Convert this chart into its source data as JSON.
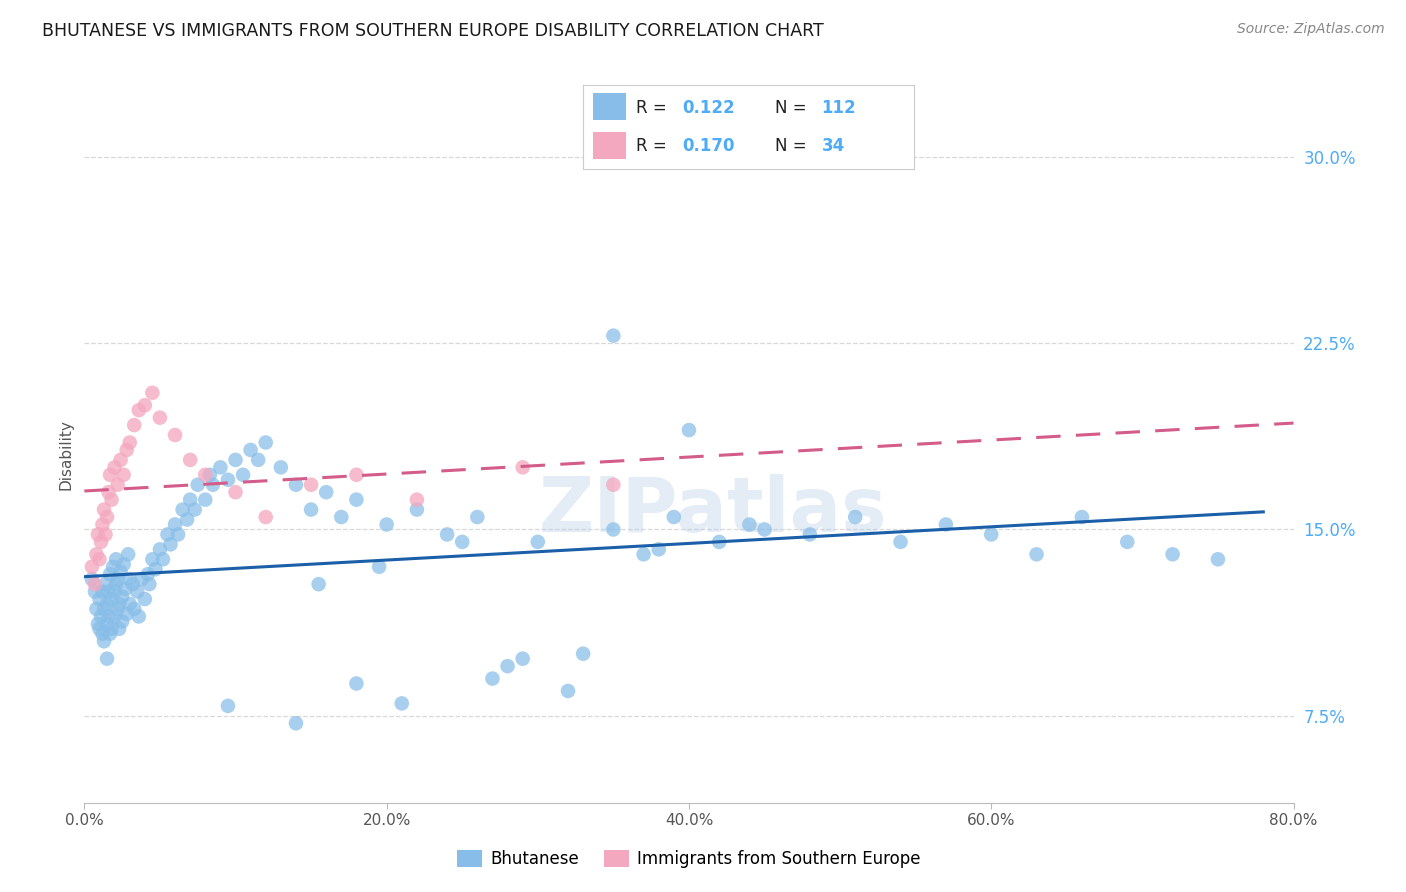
{
  "title": "BHUTANESE VS IMMIGRANTS FROM SOUTHERN EUROPE DISABILITY CORRELATION CHART",
  "source": "Source: ZipAtlas.com",
  "ylabel": "Disability",
  "yticks": [
    "7.5%",
    "15.0%",
    "22.5%",
    "30.0%"
  ],
  "ytick_vals": [
    0.075,
    0.15,
    0.225,
    0.3
  ],
  "xlim": [
    0.0,
    0.8
  ],
  "ylim": [
    0.04,
    0.32
  ],
  "r_bhutanese": 0.122,
  "n_bhutanese": 112,
  "r_southern_europe": 0.17,
  "n_southern_europe": 34,
  "color_bhutanese": "#87bde8",
  "color_southern_europe": "#f4a8bf",
  "line_color_bhutanese": "#1a5fa8",
  "line_color_southern_europe": "#d45c8a",
  "background_color": "#ffffff",
  "grid_color": "#d8d8d8",
  "title_color": "#1a1a1a",
  "axis_label_color": "#4dabf7",
  "watermark": "ZIPatlas",
  "bhutanese_x": [
    0.005,
    0.007,
    0.008,
    0.009,
    0.01,
    0.01,
    0.011,
    0.012,
    0.012,
    0.013,
    0.013,
    0.014,
    0.015,
    0.015,
    0.015,
    0.016,
    0.016,
    0.017,
    0.017,
    0.018,
    0.018,
    0.019,
    0.02,
    0.02,
    0.021,
    0.021,
    0.022,
    0.022,
    0.023,
    0.023,
    0.024,
    0.025,
    0.025,
    0.026,
    0.027,
    0.028,
    0.029,
    0.03,
    0.03,
    0.032,
    0.033,
    0.035,
    0.036,
    0.038,
    0.04,
    0.042,
    0.043,
    0.045,
    0.047,
    0.05,
    0.052,
    0.055,
    0.057,
    0.06,
    0.062,
    0.065,
    0.068,
    0.07,
    0.073,
    0.075,
    0.08,
    0.083,
    0.085,
    0.09,
    0.095,
    0.1,
    0.105,
    0.11,
    0.115,
    0.12,
    0.13,
    0.14,
    0.15,
    0.16,
    0.17,
    0.18,
    0.2,
    0.22,
    0.24,
    0.26,
    0.28,
    0.3,
    0.32,
    0.35,
    0.37,
    0.39,
    0.42,
    0.45,
    0.48,
    0.51,
    0.54,
    0.57,
    0.6,
    0.63,
    0.66,
    0.69,
    0.72,
    0.75,
    0.35,
    0.4,
    0.29,
    0.18,
    0.095,
    0.44,
    0.38,
    0.25,
    0.195,
    0.155,
    0.33,
    0.27,
    0.21,
    0.14
  ],
  "bhutanese_y": [
    0.13,
    0.125,
    0.118,
    0.112,
    0.11,
    0.122,
    0.115,
    0.108,
    0.125,
    0.118,
    0.105,
    0.128,
    0.12,
    0.112,
    0.098,
    0.125,
    0.115,
    0.108,
    0.132,
    0.122,
    0.11,
    0.135,
    0.125,
    0.115,
    0.138,
    0.128,
    0.118,
    0.13,
    0.12,
    0.11,
    0.133,
    0.123,
    0.113,
    0.136,
    0.126,
    0.116,
    0.14,
    0.13,
    0.12,
    0.128,
    0.118,
    0.125,
    0.115,
    0.13,
    0.122,
    0.132,
    0.128,
    0.138,
    0.134,
    0.142,
    0.138,
    0.148,
    0.144,
    0.152,
    0.148,
    0.158,
    0.154,
    0.162,
    0.158,
    0.168,
    0.162,
    0.172,
    0.168,
    0.175,
    0.17,
    0.178,
    0.172,
    0.182,
    0.178,
    0.185,
    0.175,
    0.168,
    0.158,
    0.165,
    0.155,
    0.162,
    0.152,
    0.158,
    0.148,
    0.155,
    0.095,
    0.145,
    0.085,
    0.15,
    0.14,
    0.155,
    0.145,
    0.15,
    0.148,
    0.155,
    0.145,
    0.152,
    0.148,
    0.14,
    0.155,
    0.145,
    0.14,
    0.138,
    0.228,
    0.19,
    0.098,
    0.088,
    0.079,
    0.152,
    0.142,
    0.145,
    0.135,
    0.128,
    0.1,
    0.09,
    0.08,
    0.072
  ],
  "southern_europe_x": [
    0.005,
    0.007,
    0.008,
    0.009,
    0.01,
    0.011,
    0.012,
    0.013,
    0.014,
    0.015,
    0.016,
    0.017,
    0.018,
    0.02,
    0.022,
    0.024,
    0.026,
    0.028,
    0.03,
    0.033,
    0.036,
    0.04,
    0.045,
    0.05,
    0.06,
    0.07,
    0.08,
    0.1,
    0.12,
    0.15,
    0.18,
    0.22,
    0.29,
    0.35
  ],
  "southern_europe_y": [
    0.135,
    0.128,
    0.14,
    0.148,
    0.138,
    0.145,
    0.152,
    0.158,
    0.148,
    0.155,
    0.165,
    0.172,
    0.162,
    0.175,
    0.168,
    0.178,
    0.172,
    0.182,
    0.185,
    0.192,
    0.198,
    0.2,
    0.205,
    0.195,
    0.188,
    0.178,
    0.172,
    0.165,
    0.155,
    0.168,
    0.172,
    0.162,
    0.175,
    0.168
  ]
}
